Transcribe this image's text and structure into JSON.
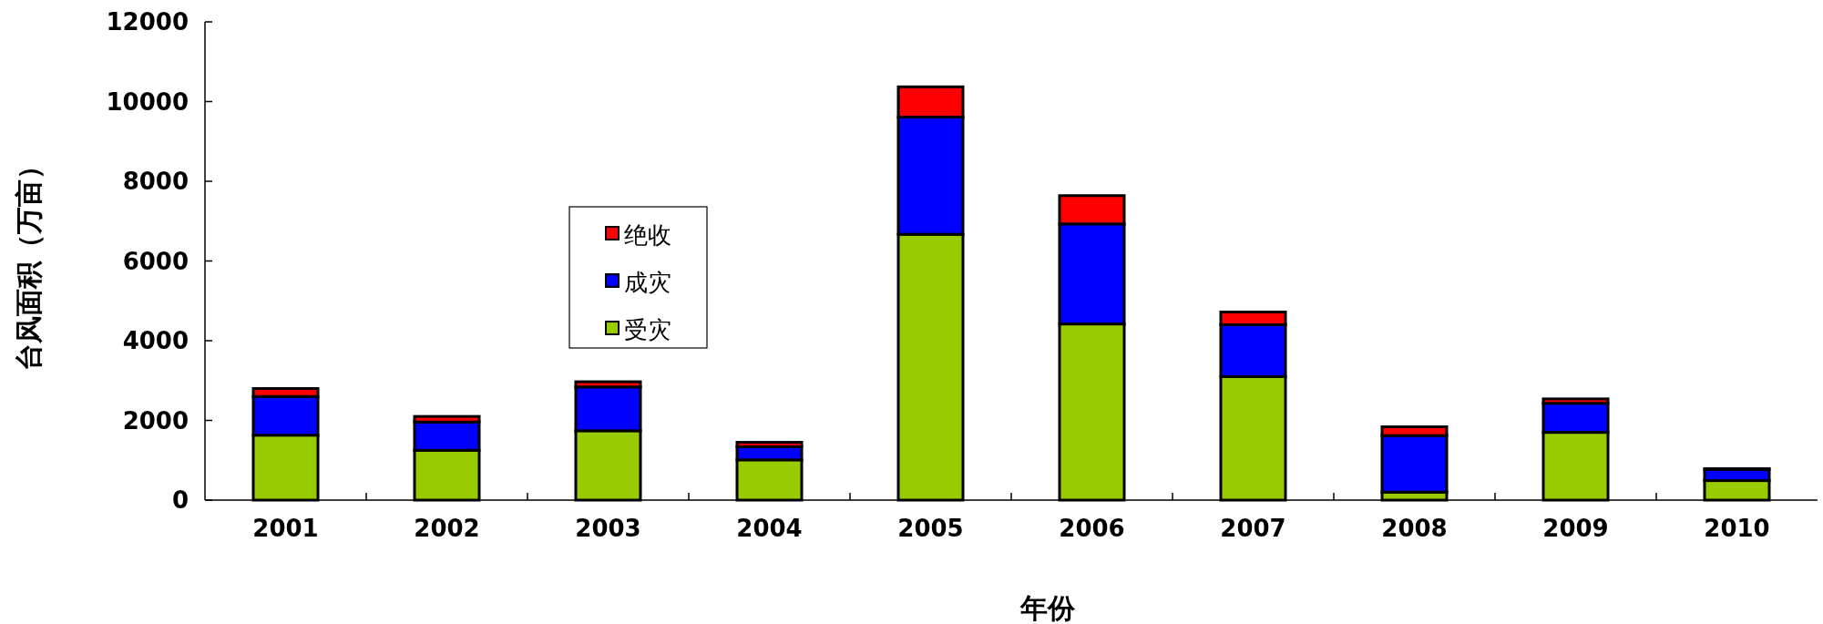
{
  "chart_data": {
    "type": "bar",
    "stacked": true,
    "xlabel": "年份",
    "ylabel": "台风面积（万亩）",
    "categories": [
      "2001",
      "2002",
      "2003",
      "2004",
      "2005",
      "2006",
      "2007",
      "2008",
      "2009",
      "2010"
    ],
    "series": [
      {
        "name": "受灾",
        "color": "#99cc00",
        "values": [
          1630,
          1250,
          1740,
          1010,
          6670,
          4420,
          3100,
          200,
          1700,
          490
        ]
      },
      {
        "name": "成灾",
        "color": "#0000ff",
        "values": [
          970,
          710,
          1100,
          330,
          2940,
          2510,
          1300,
          1420,
          730,
          280
        ]
      },
      {
        "name": "绝收",
        "color": "#ff0000",
        "values": [
          200,
          140,
          130,
          110,
          760,
          710,
          320,
          220,
          110,
          20
        ]
      }
    ],
    "ylim": [
      0,
      12000
    ],
    "yticks": [
      0,
      2000,
      4000,
      6000,
      8000,
      10000,
      12000
    ],
    "grid": false,
    "legend": "left"
  }
}
